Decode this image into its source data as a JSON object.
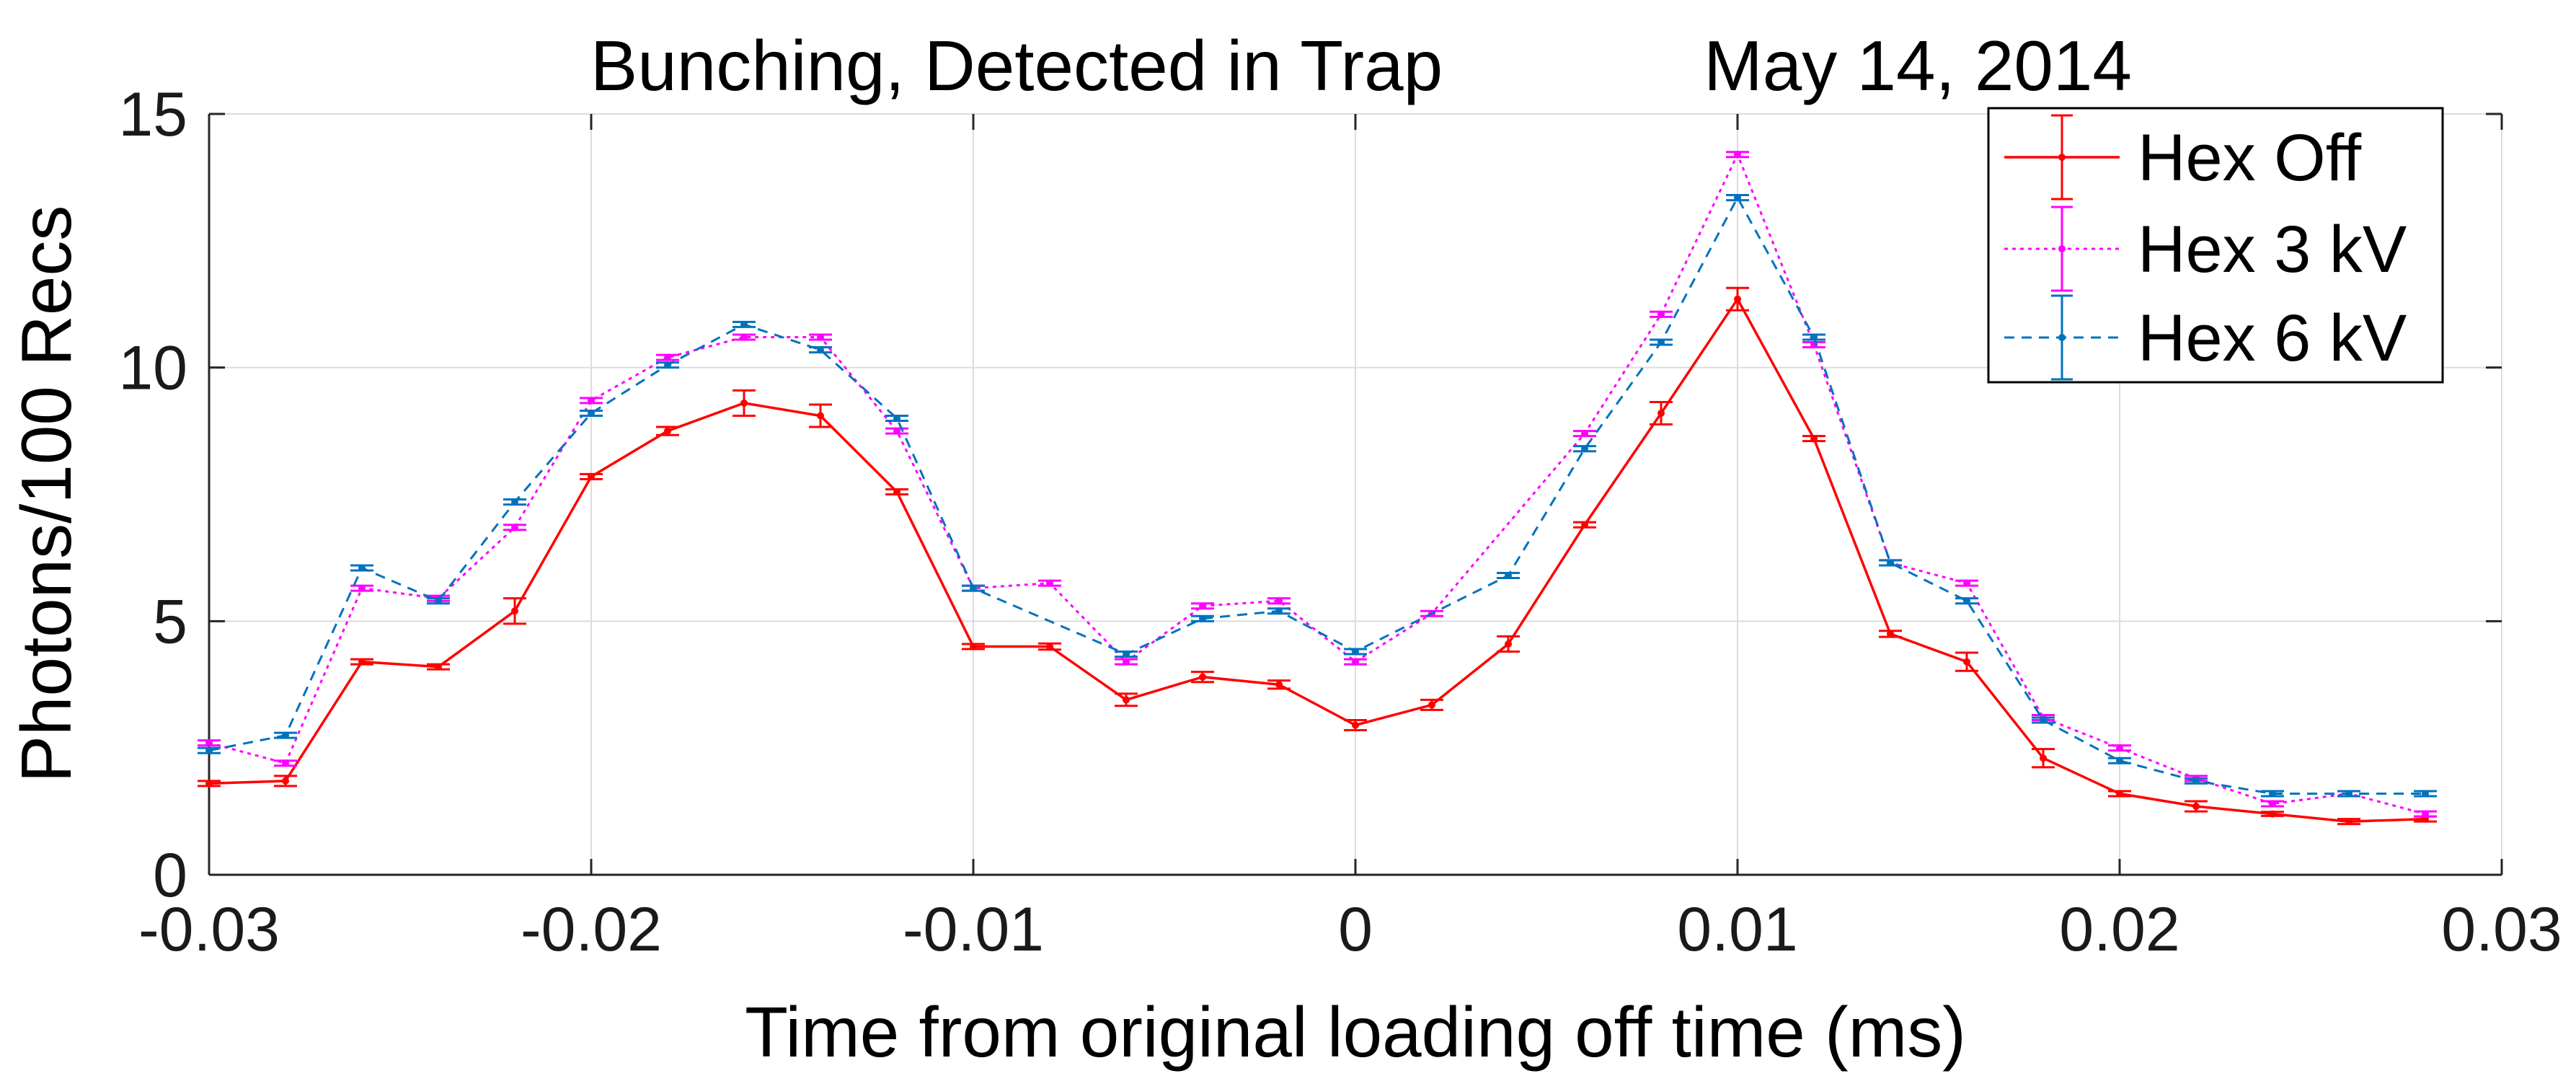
{
  "chart_data": {
    "type": "line",
    "title": "Bunching, Detected in Trap",
    "date": "May 14, 2014",
    "xlabel": "Time from original loading off time (ms)",
    "ylabel": "Photons/100 Recs",
    "xlim": [
      -0.03,
      0.03
    ],
    "ylim": [
      0,
      15
    ],
    "xticks": [
      "-0.03",
      "-0.02",
      "-0.01",
      "0",
      "0.01",
      "0.02",
      "0.03"
    ],
    "yticks": [
      "0",
      "5",
      "10",
      "15"
    ],
    "grid": true,
    "legend_position": "top-right",
    "x": [
      -0.03,
      -0.028,
      -0.026,
      -0.024,
      -0.022,
      -0.02,
      -0.018,
      -0.016,
      -0.014,
      -0.012,
      -0.01,
      -0.008,
      -0.006,
      -0.004,
      -0.002,
      0,
      0.002,
      0.004,
      0.006,
      0.008,
      0.01,
      0.012,
      0.014,
      0.016,
      0.018,
      0.02,
      0.022,
      0.024,
      0.026,
      0.028
    ],
    "series": [
      {
        "name": "Hex Off",
        "color": "#ff0000",
        "style": "solid",
        "values": [
          1.8,
          1.85,
          4.2,
          4.1,
          5.2,
          7.85,
          8.75,
          9.3,
          9.05,
          7.55,
          4.5,
          4.5,
          3.45,
          3.9,
          3.75,
          2.95,
          3.35,
          4.55,
          6.9,
          9.1,
          11.35,
          8.6,
          4.75,
          4.2,
          2.3,
          1.6,
          1.35,
          1.2,
          1.05,
          1.1
        ],
        "errors": [
          0.05,
          0.1,
          0.05,
          0.05,
          0.25,
          0.05,
          0.08,
          0.25,
          0.22,
          0.05,
          0.05,
          0.06,
          0.12,
          0.1,
          0.08,
          0.1,
          0.1,
          0.15,
          0.05,
          0.22,
          0.22,
          0.05,
          0.06,
          0.18,
          0.18,
          0.05,
          0.1,
          0.04,
          0.05,
          0.05
        ]
      },
      {
        "name": "Hex 3 kV",
        "color": "#ff00ff",
        "style": "dotted",
        "values": [
          2.6,
          2.2,
          5.65,
          5.45,
          6.85,
          9.35,
          10.2,
          10.6,
          10.6,
          8.75,
          5.65,
          5.75,
          4.2,
          5.3,
          5.4,
          4.2,
          5.15,
          null,
          8.7,
          11.05,
          14.2,
          10.45,
          6.15,
          5.75,
          3.1,
          2.5,
          1.9,
          1.4,
          1.6,
          1.2
        ],
        "errors": [
          0.05,
          0.05,
          0.05,
          0.05,
          0.05,
          0.05,
          0.05,
          0.05,
          0.05,
          0.05,
          0.05,
          0.05,
          0.05,
          0.05,
          0.05,
          0.05,
          0.05,
          null,
          0.05,
          0.05,
          0.05,
          0.05,
          0.05,
          0.05,
          0.05,
          0.05,
          0.05,
          0.05,
          0.05,
          0.05
        ]
      },
      {
        "name": "Hex 6 kV",
        "color": "#0072bd",
        "style": "dashed",
        "values": [
          2.45,
          2.75,
          6.05,
          5.4,
          7.35,
          9.1,
          10.05,
          10.85,
          10.35,
          9.0,
          5.65,
          null,
          4.35,
          5.05,
          5.2,
          4.4,
          null,
          5.9,
          8.4,
          10.5,
          13.35,
          10.6,
          6.15,
          5.4,
          3.05,
          2.25,
          1.85,
          1.6,
          1.6,
          1.6
        ],
        "errors": [
          0.05,
          0.05,
          0.05,
          0.05,
          0.05,
          0.05,
          0.05,
          0.05,
          0.05,
          0.05,
          0.05,
          null,
          0.05,
          0.05,
          0.05,
          0.05,
          null,
          0.05,
          0.05,
          0.05,
          0.05,
          0.05,
          0.05,
          0.05,
          0.05,
          0.05,
          0.05,
          0.05,
          0.05,
          0.05
        ]
      }
    ]
  }
}
